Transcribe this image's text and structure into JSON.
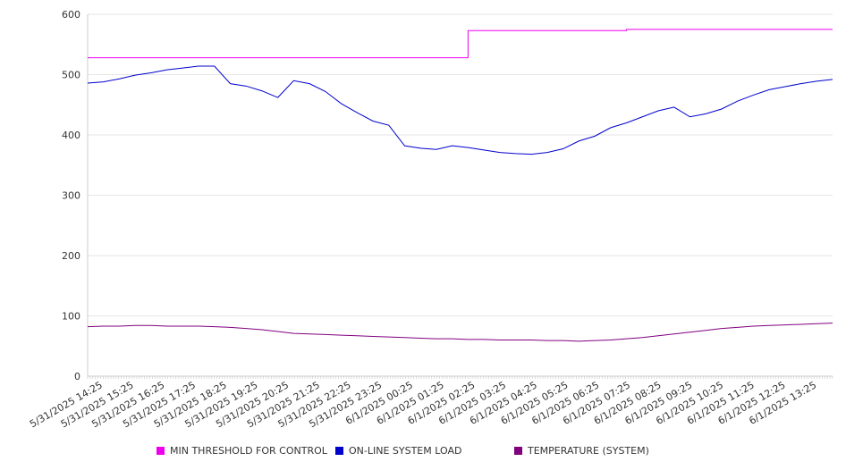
{
  "chart_data": {
    "type": "line",
    "title": "",
    "xlabel": "",
    "ylabel": "",
    "ylim": [
      0,
      600
    ],
    "yticks": [
      0,
      100,
      200,
      300,
      400,
      500,
      600
    ],
    "grid": true,
    "legend_position": "bottom",
    "x_tick_labels": [
      "5/31/2025 14:25",
      "5/31/2025 15:25",
      "5/31/2025 16:25",
      "5/31/2025 17:25",
      "5/31/2025 18:25",
      "5/31/2025 19:25",
      "5/31/2025 20:25",
      "5/31/2025 21:25",
      "5/31/2025 22:25",
      "5/31/2025 23:25",
      "6/1/2025 00:25",
      "6/1/2025 01:25",
      "6/1/2025 02:25",
      "6/1/2025 03:25",
      "6/1/2025 04:25",
      "6/1/2025 05:25",
      "6/1/2025 06:25",
      "6/1/2025 07:25",
      "6/1/2025 08:25",
      "6/1/2025 09:25",
      "6/1/2025 10:25",
      "6/1/2025 11:25",
      "6/1/2025 12:25",
      "6/1/2025 13:25"
    ],
    "x": [
      "5/31/2025 14:25",
      "5/31/2025 14:55",
      "5/31/2025 15:25",
      "5/31/2025 15:55",
      "5/31/2025 16:25",
      "5/31/2025 16:55",
      "5/31/2025 17:25",
      "5/31/2025 17:55",
      "5/31/2025 18:25",
      "5/31/2025 18:55",
      "5/31/2025 19:25",
      "5/31/2025 19:55",
      "5/31/2025 20:25",
      "5/31/2025 20:55",
      "5/31/2025 21:25",
      "5/31/2025 21:55",
      "5/31/2025 22:25",
      "5/31/2025 22:55",
      "5/31/2025 23:25",
      "5/31/2025 23:55",
      "6/1/2025 00:25",
      "6/1/2025 00:55",
      "6/1/2025 01:25",
      "6/1/2025 01:55",
      "6/1/2025 02:25",
      "6/1/2025 02:55",
      "6/1/2025 03:25",
      "6/1/2025 03:55",
      "6/1/2025 04:25",
      "6/1/2025 04:55",
      "6/1/2025 05:25",
      "6/1/2025 05:55",
      "6/1/2025 06:25",
      "6/1/2025 06:55",
      "6/1/2025 07:25",
      "6/1/2025 07:55",
      "6/1/2025 08:25",
      "6/1/2025 08:55",
      "6/1/2025 09:25",
      "6/1/2025 09:55",
      "6/1/2025 10:25",
      "6/1/2025 10:55",
      "6/1/2025 11:25",
      "6/1/2025 11:55",
      "6/1/2025 12:25",
      "6/1/2025 12:55",
      "6/1/2025 13:25",
      "6/1/2025 13:55"
    ],
    "series": [
      {
        "name": "MIN THRESHOLD FOR CONTROL",
        "color": "#ee00ee",
        "values": [
          528,
          528,
          528,
          528,
          528,
          528,
          528,
          528,
          528,
          528,
          528,
          528,
          528,
          528,
          528,
          528,
          528,
          528,
          528,
          528,
          528,
          528,
          528,
          528,
          573,
          573,
          573,
          573,
          573,
          573,
          573,
          573,
          573,
          573,
          575,
          575,
          575,
          575,
          575,
          575,
          575,
          575,
          575,
          575,
          575,
          575,
          575,
          575
        ]
      },
      {
        "name": "ON-LINE SYSTEM LOAD",
        "color": "#0000cc",
        "values": [
          486,
          488,
          493,
          499,
          503,
          508,
          511,
          514,
          514,
          485,
          481,
          473,
          462,
          490,
          485,
          472,
          452,
          437,
          423,
          416,
          382,
          378,
          376,
          382,
          379,
          375,
          371,
          369,
          368,
          371,
          377,
          390,
          398,
          412,
          420,
          430,
          440,
          446,
          430,
          435,
          443,
          456,
          466,
          475,
          480,
          485,
          489,
          492
        ]
      },
      {
        "name": "TEMPERATURE (SYSTEM)",
        "color": "#800080",
        "values": [
          82,
          83,
          83,
          84,
          84,
          83,
          83,
          83,
          82,
          81,
          79,
          77,
          74,
          71,
          70,
          69,
          68,
          67,
          66,
          65,
          64,
          63,
          62,
          62,
          61,
          61,
          60,
          60,
          60,
          59,
          59,
          58,
          59,
          60,
          62,
          64,
          67,
          70,
          73,
          76,
          79,
          81,
          83,
          84,
          85,
          86,
          87,
          88
        ]
      }
    ]
  }
}
